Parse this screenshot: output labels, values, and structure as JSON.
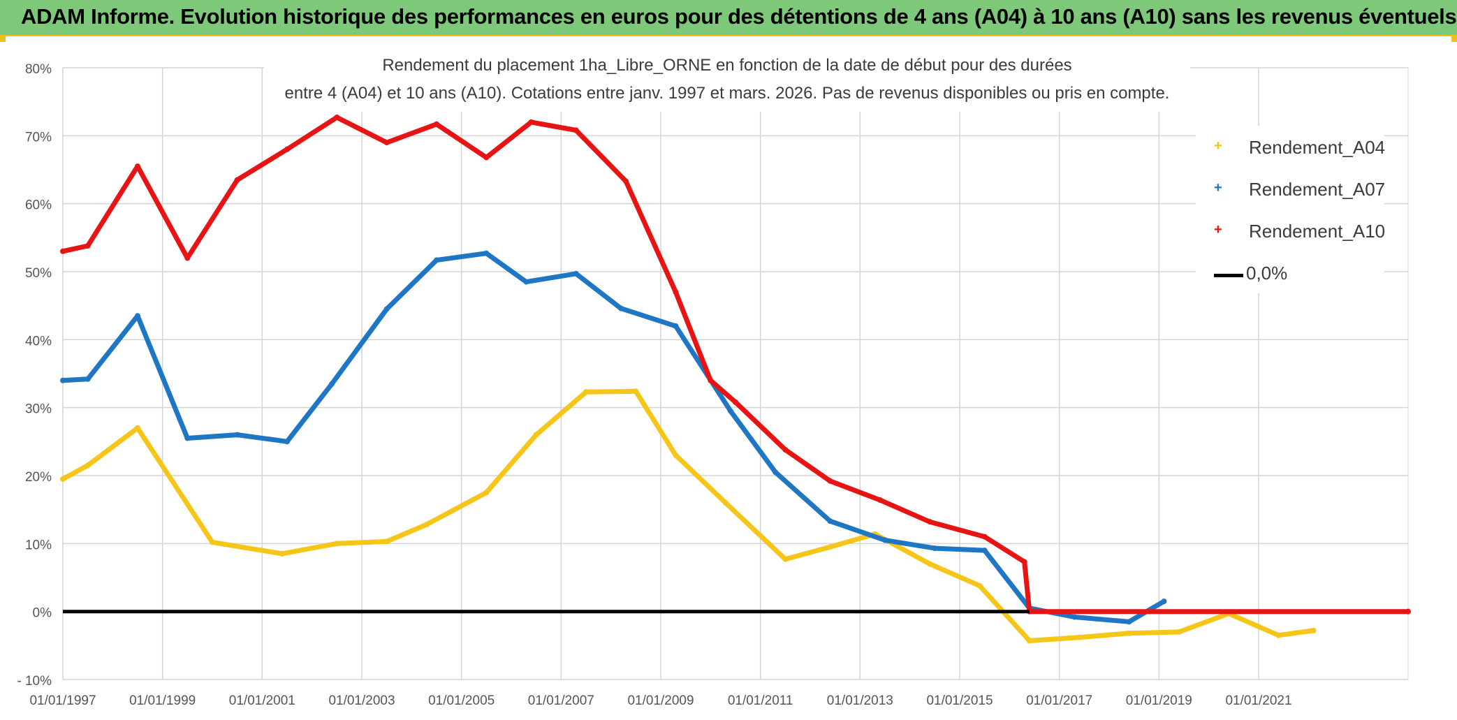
{
  "header": {
    "title": "ADAM Informe. Evolution historique des performances en euros pour des détentions de 4 ans (A04) à 10 ans (A10) sans les revenus éventuels"
  },
  "chart_data": {
    "type": "line",
    "title_line1": "Rendement du placement 1ha_Libre_ORNE en fonction de la date de début pour des durées",
    "title_line2": "entre 4 (A04) et 10 ans (A10). Cotations entre janv. 1997 et mars. 2026. Pas de revenus disponibles ou pris en compte.",
    "xlabel": "",
    "ylabel": "",
    "x_range": [
      1997.0,
      2024.0
    ],
    "ylim": [
      -10,
      80
    ],
    "y_ticks": [
      -10,
      0,
      10,
      20,
      30,
      40,
      50,
      60,
      70,
      80
    ],
    "y_tick_labels": [
      "- 10%",
      "0%",
      "10%",
      "20%",
      "30%",
      "40%",
      "50%",
      "60%",
      "70%",
      "80%"
    ],
    "x_ticks": [
      1997,
      1999,
      2001,
      2003,
      2005,
      2007,
      2009,
      2011,
      2013,
      2015,
      2017,
      2019,
      2021
    ],
    "x_tick_labels": [
      "01/01/1997",
      "01/01/1999",
      "01/01/2001",
      "01/01/2003",
      "01/01/2005",
      "01/01/2007",
      "01/01/2009",
      "01/01/2011",
      "01/01/2013",
      "01/01/2015",
      "01/01/2017",
      "01/01/2019",
      "01/01/2021"
    ],
    "legend_position": "top-right",
    "series": [
      {
        "name": "Rendement_A04",
        "color": "#f5c518",
        "x": [
          1997.0,
          1997.5,
          1998.5,
          2000.0,
          2001.4,
          2002.5,
          2003.5,
          2004.3,
          2005.5,
          2006.5,
          2007.5,
          2008.5,
          2009.3,
          2010.3,
          2011.5,
          2012.4,
          2013.3,
          2014.4,
          2015.4,
          2016.4,
          2017.4,
          2018.4,
          2019.4,
          2020.4,
          2021.4,
          2022.1
        ],
        "values": [
          19.5,
          21.5,
          27.0,
          10.2,
          8.5,
          10.0,
          10.3,
          12.8,
          17.5,
          26.0,
          32.3,
          32.4,
          23.0,
          16.0,
          7.7,
          9.5,
          11.4,
          7.0,
          3.8,
          -4.3,
          -3.8,
          -3.2,
          -3.0,
          -0.3,
          -3.5,
          -2.8
        ]
      },
      {
        "name": "Rendement_A07",
        "color": "#1f77c4",
        "x": [
          1997.0,
          1997.5,
          1998.5,
          1999.5,
          2000.5,
          2001.5,
          2002.4,
          2003.5,
          2004.5,
          2005.5,
          2006.3,
          2007.3,
          2008.2,
          2009.3,
          2010.4,
          2011.3,
          2012.4,
          2013.5,
          2014.5,
          2015.5,
          2016.4,
          2017.3,
          2018.4,
          2019.1
        ],
        "values": [
          34.0,
          34.2,
          43.5,
          25.5,
          26.0,
          25.0,
          33.5,
          44.5,
          51.7,
          52.7,
          48.5,
          49.7,
          44.6,
          42.0,
          29.5,
          20.5,
          13.3,
          10.5,
          9.3,
          9.0,
          0.5,
          -0.8,
          -1.5,
          1.5
        ]
      },
      {
        "name": "Rendement_A10",
        "color": "#e81414",
        "x": [
          1997.0,
          1997.5,
          1998.5,
          1999.5,
          2000.5,
          2001.5,
          2002.5,
          2003.5,
          2004.5,
          2005.5,
          2006.4,
          2007.3,
          2008.3,
          2009.3,
          2010.0,
          2010.5,
          2011.5,
          2012.4,
          2013.4,
          2014.4,
          2015.5,
          2016.3,
          2016.4,
          2024.0
        ],
        "values": [
          53.0,
          53.8,
          65.5,
          52.0,
          63.5,
          68.0,
          72.7,
          69.0,
          71.7,
          66.8,
          72.0,
          70.8,
          63.3,
          47.0,
          34.0,
          30.8,
          23.8,
          19.2,
          16.4,
          13.2,
          11.0,
          7.3,
          0.0,
          0.0
        ]
      },
      {
        "name": "0,0%",
        "color": "#000000",
        "style": "solid",
        "x": [
          1997.0,
          2016.4
        ],
        "values": [
          0.0,
          0.0
        ]
      }
    ]
  }
}
